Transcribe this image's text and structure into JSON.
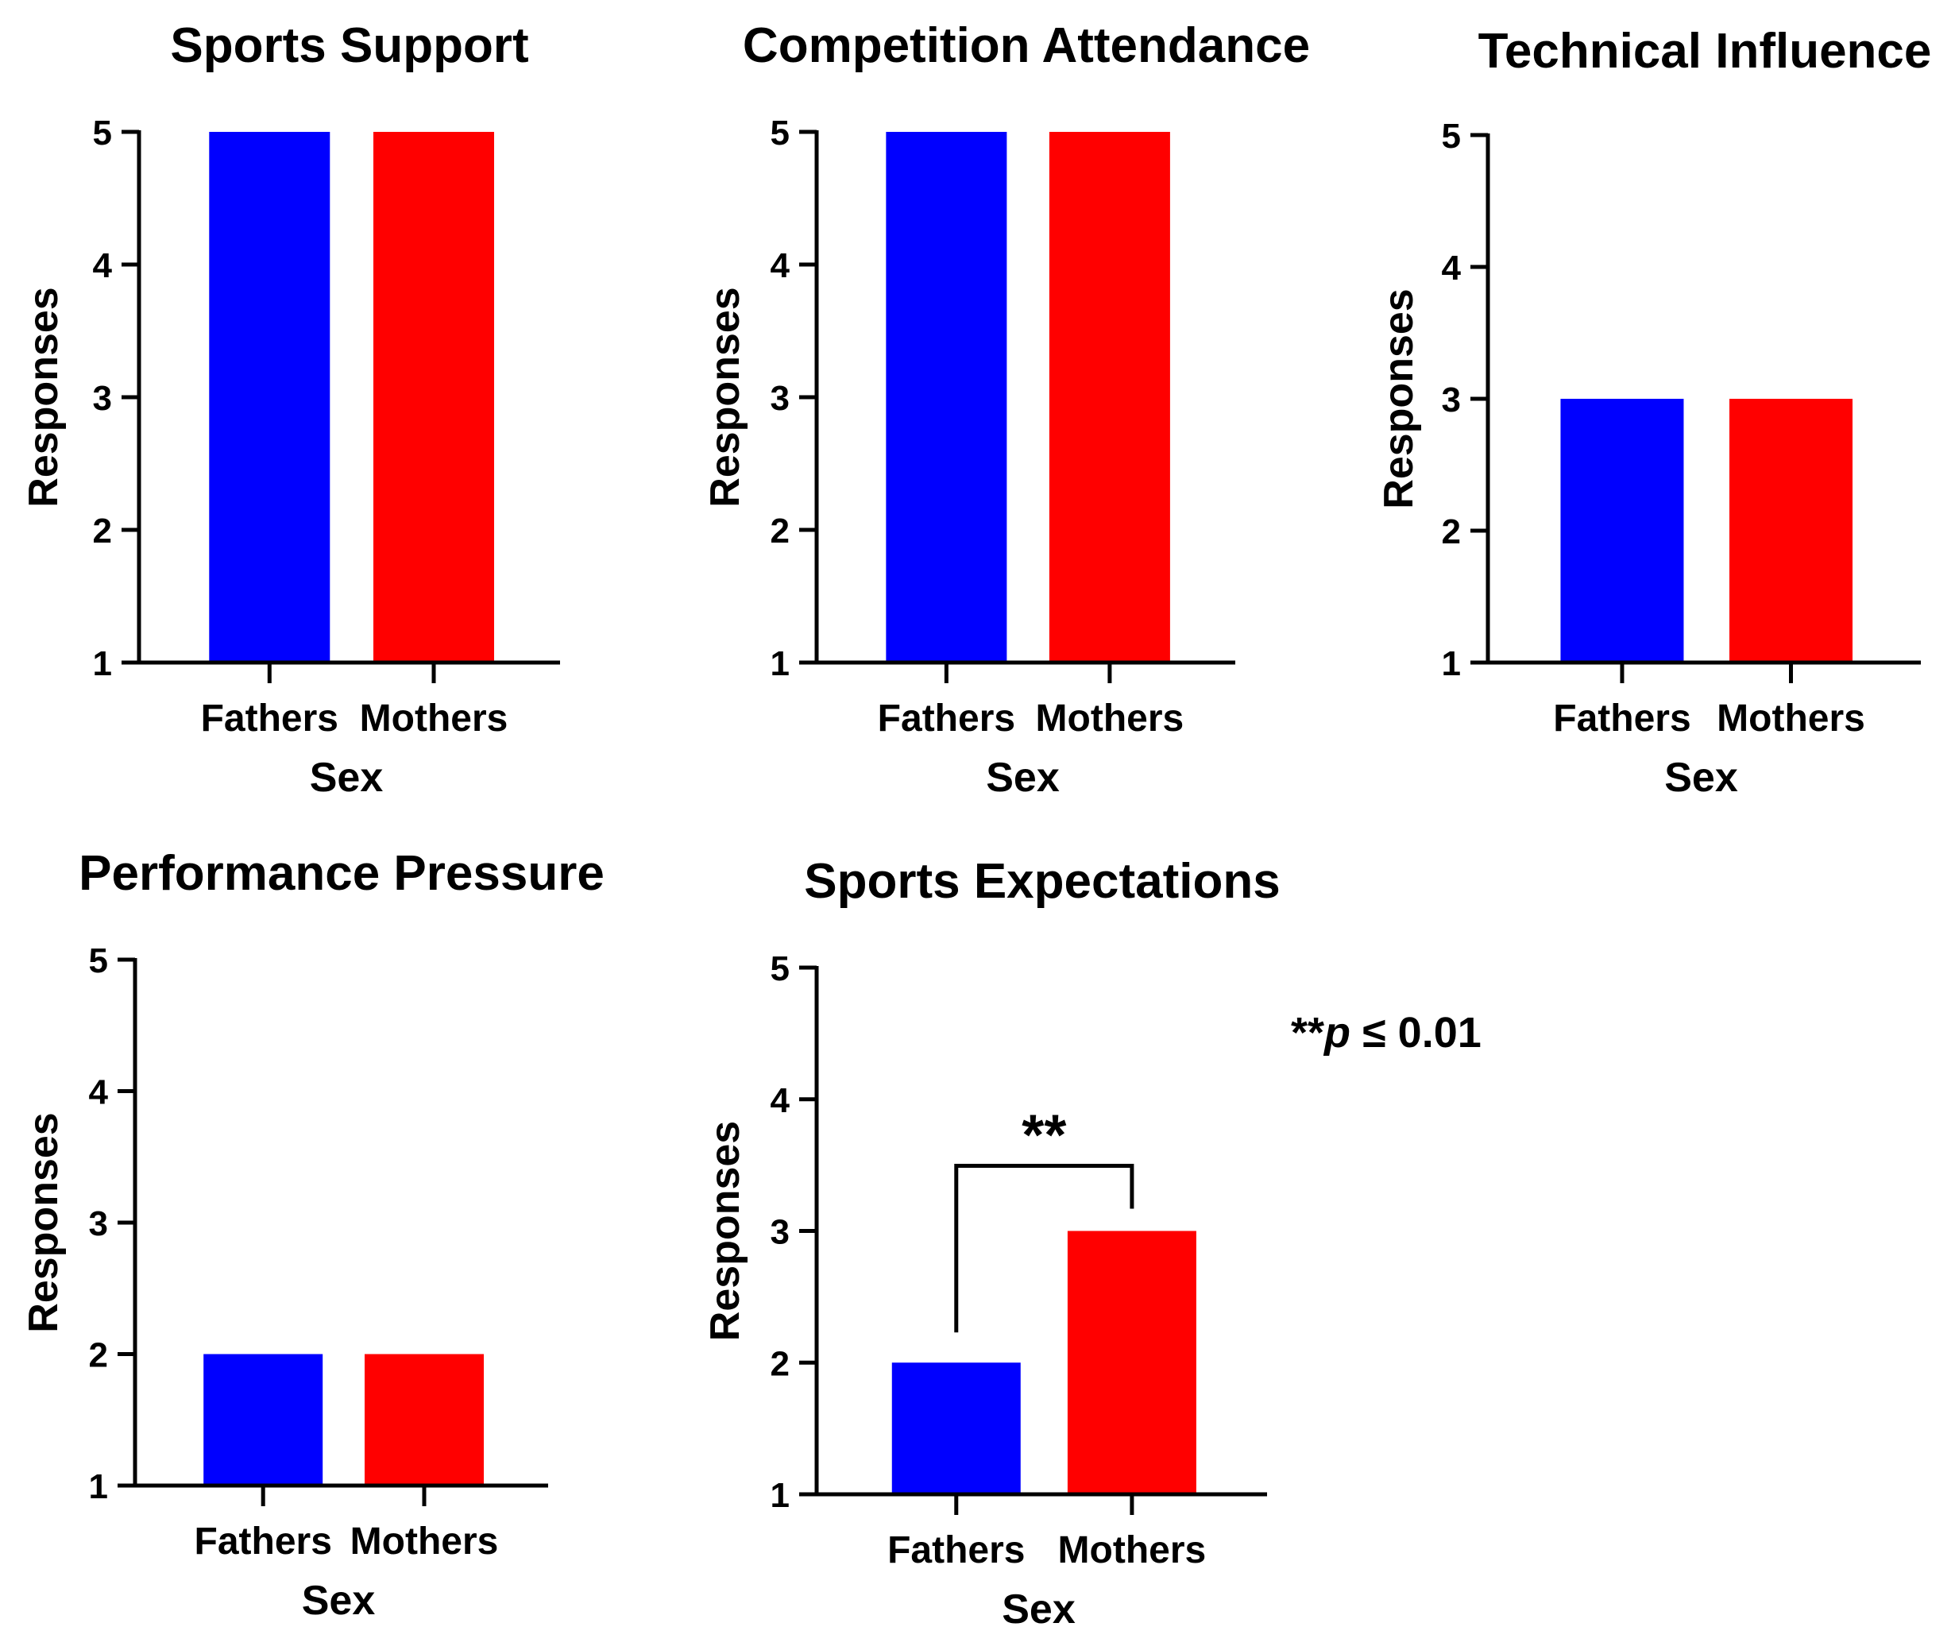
{
  "figure_note": {
    "stars": "**",
    "p": "p",
    "rest": " ≤ 0.01"
  },
  "colors": {
    "fathers": "#0000ff",
    "mothers": "#ff0000",
    "axis": "#000000"
  },
  "chart_data": [
    {
      "type": "bar",
      "title": "Sports Support",
      "categories": [
        "Fathers",
        "Mothers"
      ],
      "values": [
        5,
        5
      ],
      "xlabel": "Sex",
      "ylabel": "Responses",
      "ylim": [
        1,
        5
      ],
      "yticks": [
        "1",
        "2",
        "3",
        "4",
        "5"
      ],
      "significance": null
    },
    {
      "type": "bar",
      "title": "Competition Attendance",
      "categories": [
        "Fathers",
        "Mothers"
      ],
      "values": [
        5,
        5
      ],
      "xlabel": "Sex",
      "ylabel": "Responses",
      "ylim": [
        1,
        5
      ],
      "yticks": [
        "1",
        "2",
        "3",
        "4",
        "5"
      ],
      "significance": null
    },
    {
      "type": "bar",
      "title": "Technical Influence",
      "categories": [
        "Fathers",
        "Mothers"
      ],
      "values": [
        3,
        3
      ],
      "xlabel": "Sex",
      "ylabel": "Responses",
      "ylim": [
        1,
        5
      ],
      "yticks": [
        "1",
        "2",
        "3",
        "4",
        "5"
      ],
      "significance": null
    },
    {
      "type": "bar",
      "title": "Performance Pressure",
      "categories": [
        "Fathers",
        "Mothers"
      ],
      "values": [
        2,
        2
      ],
      "xlabel": "Sex",
      "ylabel": "Responses",
      "ylim": [
        1,
        5
      ],
      "yticks": [
        "1",
        "2",
        "3",
        "4",
        "5"
      ],
      "significance": null
    },
    {
      "type": "bar",
      "title": "Sports Expectations",
      "categories": [
        "Fathers",
        "Mothers"
      ],
      "values": [
        2,
        3
      ],
      "xlabel": "Sex",
      "ylabel": "Responses",
      "ylim": [
        1,
        5
      ],
      "yticks": [
        "1",
        "2",
        "3",
        "4",
        "5"
      ],
      "significance": {
        "label": "**",
        "between": [
          "Fathers",
          "Mothers"
        ]
      }
    }
  ]
}
